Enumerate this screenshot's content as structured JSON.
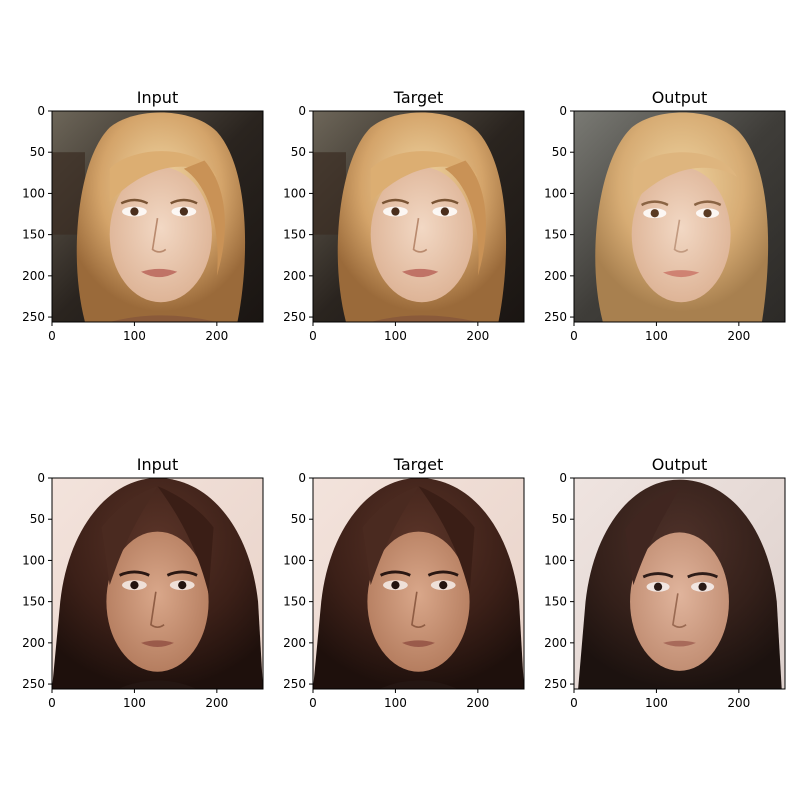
{
  "figure": {
    "rows": [
      {
        "panels": [
          {
            "title": "Input",
            "subject": "blonde-woman-face",
            "variant": "input"
          },
          {
            "title": "Target",
            "subject": "blonde-woman-face",
            "variant": "target"
          },
          {
            "title": "Output",
            "subject": "blonde-woman-face",
            "variant": "output"
          }
        ]
      },
      {
        "panels": [
          {
            "title": "Input",
            "subject": "brunette-woman-face",
            "variant": "input"
          },
          {
            "title": "Target",
            "subject": "brunette-woman-face",
            "variant": "target"
          },
          {
            "title": "Output",
            "subject": "brunette-woman-face",
            "variant": "output"
          }
        ]
      }
    ],
    "axis": {
      "x_ticks": [
        0,
        100,
        200
      ],
      "y_ticks": [
        0,
        50,
        100,
        150,
        200,
        250
      ],
      "range": [
        0,
        256
      ]
    }
  }
}
